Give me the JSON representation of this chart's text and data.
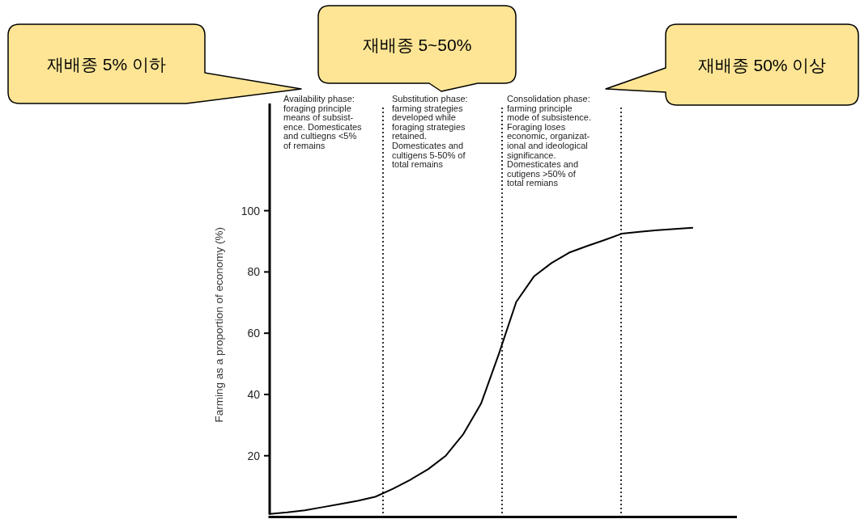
{
  "chart_data": {
    "type": "line",
    "ylabel": "Farming as a proportion of economy (%)",
    "categories": [
      null,
      null,
      null,
      null,
      null,
      null,
      null,
      null,
      null,
      null,
      null,
      null,
      null,
      null,
      null,
      null,
      null,
      null,
      null,
      null,
      null,
      null,
      null,
      null,
      null
    ],
    "series": [
      {
        "color": "#000000",
        "values": [
          1,
          1.5,
          2.2,
          3.2,
          4.2,
          5.3,
          6.6,
          9.2,
          12.2,
          15.6,
          20,
          27.1,
          37,
          53,
          70.2,
          78.5,
          82.9,
          86.3,
          88.4,
          90.4,
          92.5,
          93.1,
          93.6,
          94,
          94.4
        ]
      }
    ],
    "ylim": [
      0,
      135
    ],
    "yticks": [
      20,
      40,
      60,
      80,
      100
    ],
    "tick_labels": "y",
    "line_style": "solid",
    "annotations": [
      "Availability phase:\nforaging principle\nmeans of subsist-\nence. Domesticates\nand cultiegns <5%\nof remains",
      "Substitution phase:\nfarming strategies\ndeveloped while\nforaging strategies\nretained.\nDomesticates and\ncultigens 5-50% of\ntotal remains",
      "Consolidation phase:\nfarming principle\nmode of subsistence.\nForaging loses\neconomic, organizat-\nional and ideological\nsignificance.\nDomesticates and\ncutigens >50% of\ntotal remians",
      "재배종 5% 이하",
      "재배종 5~50%",
      "재배종 50% 이상"
    ]
  }
}
